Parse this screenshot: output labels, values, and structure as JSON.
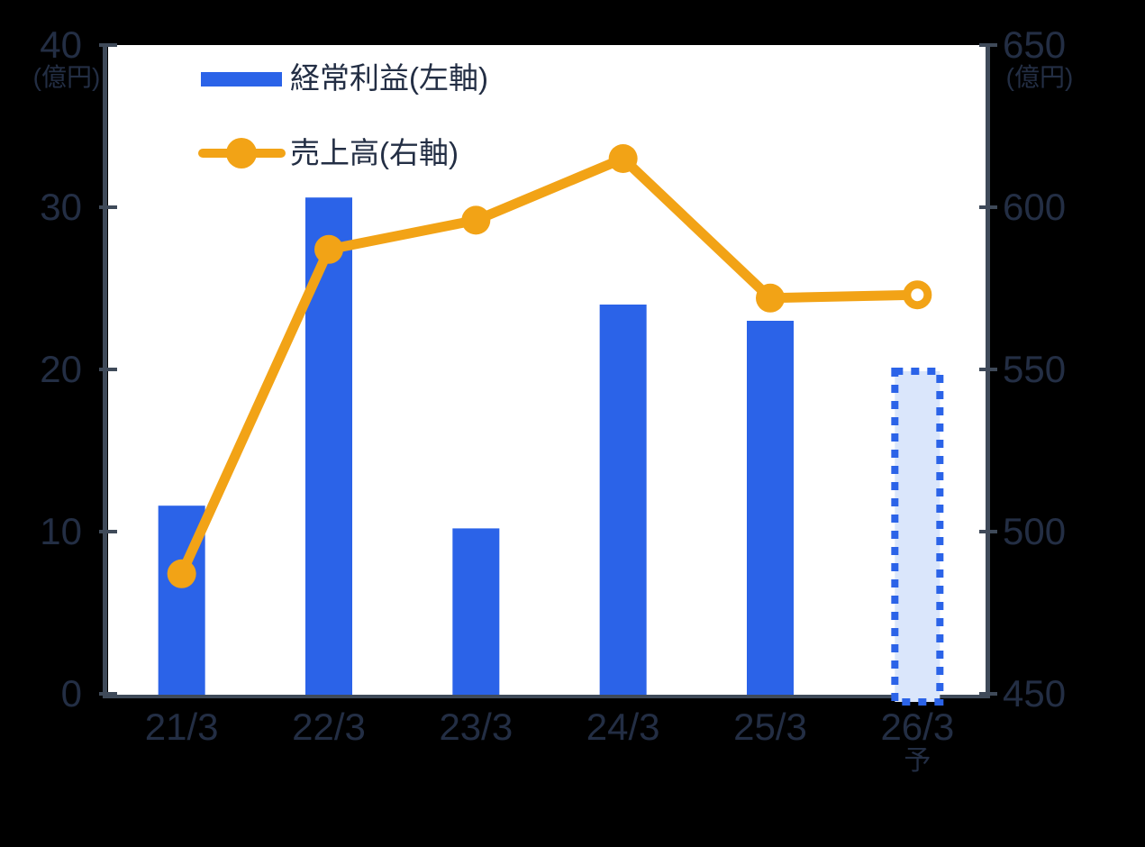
{
  "colors": {
    "background": "#000000",
    "plot_background": "#ffffff",
    "bar_blue": "#2B63E8",
    "line_orange": "#F2A316",
    "forecast_fill": "#DAE6FB",
    "forecast_border": "#2B63E8",
    "text": "#232E44",
    "axis_line": "#3F4A59"
  },
  "chart_data": {
    "type": "bar",
    "subtype": "dual-axis bar and line combo",
    "categories": [
      "21/3",
      "22/3",
      "23/3",
      "24/3",
      "25/3",
      "26/3"
    ],
    "last_category_sublabel": "予",
    "series": [
      {
        "name": "経常利益(左軸)",
        "type": "bar",
        "axis": "left",
        "values": [
          11.6,
          30.6,
          10.2,
          24.0,
          23.0,
          20.0
        ],
        "forecast_last": true
      },
      {
        "name": "売上高(右軸)",
        "type": "line",
        "axis": "right",
        "values": [
          487,
          587,
          596,
          615,
          572,
          573
        ],
        "open_marker_last": true
      }
    ],
    "left_axis": {
      "label": "(億円)",
      "ticks": [
        40,
        30,
        20,
        10,
        0
      ],
      "range": [
        0,
        40
      ]
    },
    "right_axis": {
      "label": "(億円)",
      "ticks": [
        650,
        600,
        550,
        500,
        450
      ],
      "range": [
        450,
        650
      ]
    },
    "grid": false,
    "legend_position": "top-left-inside"
  }
}
